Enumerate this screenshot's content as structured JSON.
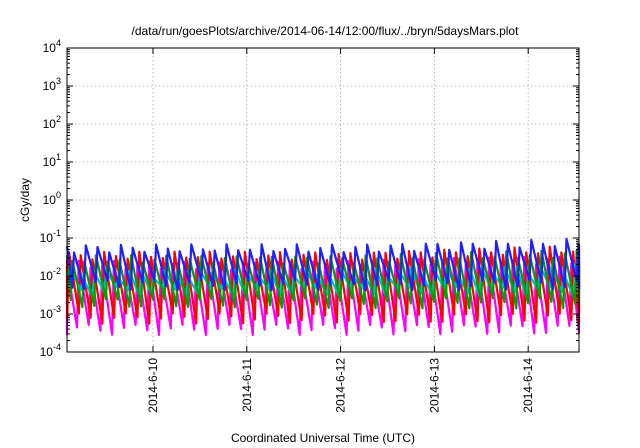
{
  "chart_data": {
    "type": "line",
    "title": "/data/run/goesPlots/archive/2014-06-14/12:00/flux/../bryn/5daysMars.plot",
    "xlabel": "Coordinated Universal Time (UTC)",
    "ylabel": "cGy/day",
    "yscale": "log",
    "ylim": [
      0.0001,
      10000
    ],
    "xlim": [
      "2014-06-09T02:00",
      "2014-06-14T13:00"
    ],
    "x_ticks": [
      {
        "label": "2014-6-10",
        "value": "2014-06-10T00:00"
      },
      {
        "label": "2014-6-11",
        "value": "2014-06-11T00:00"
      },
      {
        "label": "2014-6-12",
        "value": "2014-06-12T00:00"
      },
      {
        "label": "2014-6-13",
        "value": "2014-06-13T00:00"
      },
      {
        "label": "2014-6-14",
        "value": "2014-06-14T00:00"
      }
    ],
    "y_ticks": [
      {
        "base": "10",
        "exp": "-4",
        "value": 0.0001
      },
      {
        "base": "10",
        "exp": "-3",
        "value": 0.001
      },
      {
        "base": "10",
        "exp": "-2",
        "value": 0.01
      },
      {
        "base": "10",
        "exp": "-1",
        "value": 0.1
      },
      {
        "base": "10",
        "exp": "0",
        "value": 1
      },
      {
        "base": "10",
        "exp": "1",
        "value": 10
      },
      {
        "base": "10",
        "exp": "2",
        "value": 100
      },
      {
        "base": "10",
        "exp": "3",
        "value": 1000
      },
      {
        "base": "10",
        "exp": "4",
        "value": 10000
      }
    ],
    "grid": true,
    "legend": "none",
    "series": [
      {
        "color": "#ff00ff",
        "peak": 0.02,
        "trough": 0.0004,
        "offset_hours": 0.0
      },
      {
        "color": "#ff0000",
        "peak": 0.035,
        "trough": 0.0008,
        "offset_hours": 0.5
      },
      {
        "color": "#00c0c0",
        "peak": 0.012,
        "trough": 0.004,
        "offset_hours": 1.0
      },
      {
        "color": "#00a000",
        "peak": 0.028,
        "trough": 0.002,
        "offset_hours": 1.4
      },
      {
        "color": "#2020ff",
        "peak": 0.055,
        "trough": 0.006,
        "offset_hours": 1.8
      }
    ],
    "period_hours": 3.0
  }
}
